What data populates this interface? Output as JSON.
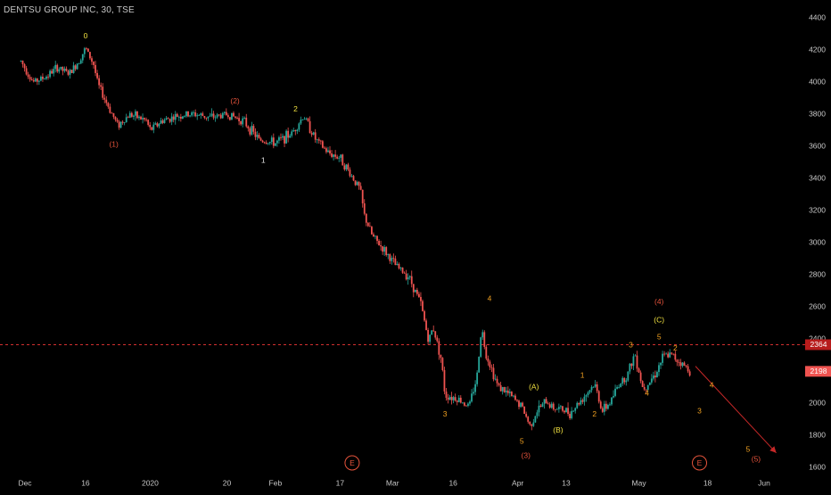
{
  "chart_data": {
    "type": "candlestick",
    "title": "DENTSU GROUP INC, 30, TSE",
    "interval": "30",
    "exchange": "TSE",
    "ylim": [
      1550,
      4500
    ],
    "y_ticks": [
      1600,
      1800,
      2000,
      2200,
      2400,
      2600,
      2800,
      3000,
      3200,
      3400,
      3600,
      3800,
      4000,
      4200,
      4400
    ],
    "x_ticks": [
      {
        "label": "Dec",
        "day": 0
      },
      {
        "label": "16",
        "day": 15
      },
      {
        "label": "2020",
        "day": 31
      },
      {
        "label": "20",
        "day": 50
      },
      {
        "label": "Feb",
        "day": 62
      },
      {
        "label": "17",
        "day": 78
      },
      {
        "label": "Mar",
        "day": 91
      },
      {
        "label": "16",
        "day": 106
      },
      {
        "label": "Apr",
        "day": 122
      },
      {
        "label": "13",
        "day": 134
      },
      {
        "label": "May",
        "day": 152
      },
      {
        "label": "18",
        "day": 169
      },
      {
        "label": "Jun",
        "day": 183
      }
    ],
    "price_path": [
      [
        -1,
        4130
      ],
      [
        2,
        4000
      ],
      [
        5,
        4030
      ],
      [
        8,
        4090
      ],
      [
        11,
        4050
      ],
      [
        13,
        4120
      ],
      [
        15,
        4210
      ],
      [
        17,
        4110
      ],
      [
        18,
        3990
      ],
      [
        20,
        3880
      ],
      [
        23,
        3730
      ],
      [
        26,
        3800
      ],
      [
        30,
        3760
      ],
      [
        31,
        3700
      ],
      [
        34,
        3760
      ],
      [
        38,
        3790
      ],
      [
        42,
        3800
      ],
      [
        46,
        3780
      ],
      [
        50,
        3800
      ],
      [
        54,
        3760
      ],
      [
        58,
        3640
      ],
      [
        62,
        3620
      ],
      [
        66,
        3680
      ],
      [
        69,
        3790
      ],
      [
        72,
        3640
      ],
      [
        75,
        3560
      ],
      [
        78,
        3530
      ],
      [
        81,
        3410
      ],
      [
        83,
        3330
      ],
      [
        84,
        3170
      ],
      [
        86,
        3040
      ],
      [
        89,
        2950
      ],
      [
        92,
        2850
      ],
      [
        95,
        2790
      ],
      [
        98,
        2620
      ],
      [
        100,
        2380
      ],
      [
        101,
        2480
      ],
      [
        103,
        2280
      ],
      [
        104,
        2050
      ],
      [
        107,
        2030
      ],
      [
        110,
        1980
      ],
      [
        112,
        2180
      ],
      [
        113,
        2480
      ],
      [
        114,
        2320
      ],
      [
        117,
        2110
      ],
      [
        120,
        2050
      ],
      [
        123,
        1980
      ],
      [
        125,
        1860
      ],
      [
        127,
        1960
      ],
      [
        129,
        2010
      ],
      [
        131,
        1970
      ],
      [
        133,
        1960
      ],
      [
        135,
        1940
      ],
      [
        138,
        2030
      ],
      [
        141,
        2120
      ],
      [
        143,
        1950
      ],
      [
        145,
        2010
      ],
      [
        147,
        2120
      ],
      [
        149,
        2170
      ],
      [
        151,
        2310
      ],
      [
        153,
        2090
      ],
      [
        156,
        2180
      ],
      [
        158,
        2290
      ],
      [
        160,
        2300
      ],
      [
        162,
        2260
      ],
      [
        164,
        2215
      ],
      [
        165,
        2198
      ]
    ],
    "current_price": 2198,
    "reference_level": 2364,
    "projection": [
      [
        166,
        2230
      ],
      [
        186,
        1690
      ]
    ],
    "time_markers": [
      {
        "label": "E",
        "day": 81
      },
      {
        "label": "E",
        "day": 167
      }
    ],
    "wave_labels": [
      {
        "text": "0",
        "day": 15,
        "price": 4285,
        "color": "#f0e040"
      },
      {
        "text": "(1)",
        "day": 22,
        "price": 3610,
        "color": "#e5533b"
      },
      {
        "text": "(2)",
        "day": 52,
        "price": 3880,
        "color": "#e5533b"
      },
      {
        "text": "1",
        "day": 59,
        "price": 3510,
        "color": "#e8e8e8"
      },
      {
        "text": "2",
        "day": 67,
        "price": 3830,
        "color": "#f0e040"
      },
      {
        "text": "3",
        "day": 104,
        "price": 1930,
        "color": "#f0a020"
      },
      {
        "text": "4",
        "day": 115,
        "price": 2650,
        "color": "#f0a020"
      },
      {
        "text": "5",
        "day": 123,
        "price": 1760,
        "color": "#f0a020"
      },
      {
        "text": "(3)",
        "day": 124,
        "price": 1670,
        "color": "#e5533b"
      },
      {
        "text": "(A)",
        "day": 126,
        "price": 2100,
        "color": "#f0e040"
      },
      {
        "text": "(B)",
        "day": 132,
        "price": 1830,
        "color": "#f0e040"
      },
      {
        "text": "1",
        "day": 138,
        "price": 2170,
        "color": "#f0a020"
      },
      {
        "text": "2",
        "day": 141,
        "price": 1930,
        "color": "#f0a020"
      },
      {
        "text": "3",
        "day": 150,
        "price": 2360,
        "color": "#f0a020"
      },
      {
        "text": "4",
        "day": 154,
        "price": 2060,
        "color": "#f0a020"
      },
      {
        "text": "5",
        "day": 157,
        "price": 2410,
        "color": "#f0a020"
      },
      {
        "text": "(C)",
        "day": 157,
        "price": 2515,
        "color": "#f0e040"
      },
      {
        "text": "(4)",
        "day": 157,
        "price": 2630,
        "color": "#e5533b"
      },
      {
        "text": "2",
        "day": 161,
        "price": 2340,
        "color": "#f0a020"
      },
      {
        "text": "4",
        "day": 170,
        "price": 2110,
        "color": "#f0a020"
      },
      {
        "text": "3",
        "day": 167,
        "price": 1950,
        "color": "#f0a020"
      },
      {
        "text": "5",
        "day": 179,
        "price": 1710,
        "color": "#f0a020"
      },
      {
        "text": "(5)",
        "day": 181,
        "price": 1650,
        "color": "#e5533b"
      }
    ],
    "colors": {
      "background": "#000000",
      "up": "#26a69a",
      "down": "#ef5350",
      "axis_text": "#c8c8c8",
      "ref_line": "#d32f2f",
      "price_badge": "#ef5350",
      "marker": "#e5533b"
    }
  }
}
